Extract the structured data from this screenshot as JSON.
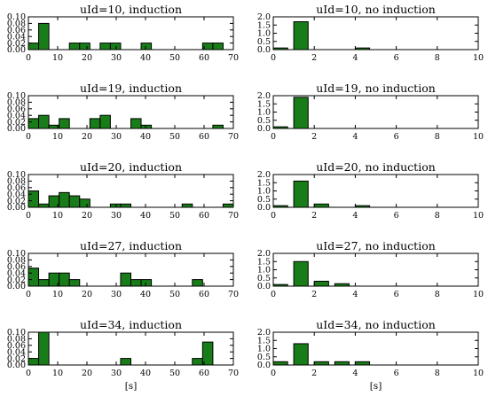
{
  "figure": {
    "background": "#ffffff",
    "bar_color": "#187d18",
    "edge_color": "#000000"
  },
  "chart_data": [
    {
      "type": "bar",
      "title": "uId=10, induction",
      "xlabel": "",
      "ylabel": "",
      "xlim": [
        0,
        70
      ],
      "ylim": [
        0,
        0.1
      ],
      "bin_width": 3.5,
      "xticks": [
        "0",
        "10",
        "20",
        "30",
        "40",
        "50",
        "60",
        "70"
      ],
      "yticks": [
        "0.00",
        "0.02",
        "0.04",
        "0.06",
        "0.08",
        "0.10"
      ],
      "bars": [
        {
          "x": 0,
          "value": 0.02
        },
        {
          "x": 3.5,
          "value": 0.08
        },
        {
          "x": 14,
          "value": 0.02
        },
        {
          "x": 17.5,
          "value": 0.02
        },
        {
          "x": 24.5,
          "value": 0.02
        },
        {
          "x": 28,
          "value": 0.02
        },
        {
          "x": 38.5,
          "value": 0.02
        },
        {
          "x": 59.5,
          "value": 0.02
        },
        {
          "x": 63,
          "value": 0.02
        }
      ]
    },
    {
      "type": "bar",
      "title": "uId=10, no induction",
      "xlabel": "",
      "ylabel": "",
      "xlim": [
        0,
        10
      ],
      "ylim": [
        0,
        2.0
      ],
      "bin_width": 0.7,
      "xticks": [
        "0",
        "2",
        "4",
        "6",
        "8",
        "10"
      ],
      "yticks": [
        "0.0",
        "0.5",
        "1.0",
        "1.5",
        "2.0"
      ],
      "bars": [
        {
          "x": 0,
          "value": 0.1
        },
        {
          "x": 1,
          "value": 1.7
        },
        {
          "x": 4,
          "value": 0.1
        }
      ]
    },
    {
      "type": "bar",
      "title": "uId=19, induction",
      "xlabel": "",
      "ylabel": "",
      "xlim": [
        0,
        70
      ],
      "ylim": [
        0,
        0.1
      ],
      "bin_width": 3.5,
      "xticks": [
        "0",
        "10",
        "20",
        "30",
        "40",
        "50",
        "60",
        "70"
      ],
      "yticks": [
        "0.00",
        "0.02",
        "0.04",
        "0.06",
        "0.08",
        "0.10"
      ],
      "bars": [
        {
          "x": 0,
          "value": 0.03
        },
        {
          "x": 3.5,
          "value": 0.04
        },
        {
          "x": 7,
          "value": 0.01
        },
        {
          "x": 10.5,
          "value": 0.03
        },
        {
          "x": 21,
          "value": 0.03
        },
        {
          "x": 24.5,
          "value": 0.04
        },
        {
          "x": 35,
          "value": 0.03
        },
        {
          "x": 38.5,
          "value": 0.01
        },
        {
          "x": 63,
          "value": 0.01
        }
      ]
    },
    {
      "type": "bar",
      "title": "uId=19, no induction",
      "xlabel": "",
      "ylabel": "",
      "xlim": [
        0,
        10
      ],
      "ylim": [
        0,
        2.0
      ],
      "bin_width": 0.7,
      "xticks": [
        "0",
        "2",
        "4",
        "6",
        "8",
        "10"
      ],
      "yticks": [
        "0.0",
        "0.5",
        "1.0",
        "1.5",
        "2.0"
      ],
      "bars": [
        {
          "x": 0,
          "value": 0.1
        },
        {
          "x": 1,
          "value": 1.9
        }
      ]
    },
    {
      "type": "bar",
      "title": "uId=20, induction",
      "xlabel": "",
      "ylabel": "",
      "xlim": [
        0,
        70
      ],
      "ylim": [
        0,
        0.1
      ],
      "bin_width": 3.5,
      "xticks": [
        "0",
        "10",
        "20",
        "30",
        "40",
        "50",
        "60",
        "70"
      ],
      "yticks": [
        "0.00",
        "0.02",
        "0.04",
        "0.06",
        "0.08",
        "0.10"
      ],
      "bars": [
        {
          "x": 0,
          "value": 0.05
        },
        {
          "x": 3.5,
          "value": 0.01
        },
        {
          "x": 7,
          "value": 0.035
        },
        {
          "x": 10.5,
          "value": 0.045
        },
        {
          "x": 14,
          "value": 0.035
        },
        {
          "x": 17.5,
          "value": 0.025
        },
        {
          "x": 28,
          "value": 0.01
        },
        {
          "x": 31.5,
          "value": 0.01
        },
        {
          "x": 52.5,
          "value": 0.01
        },
        {
          "x": 66.5,
          "value": 0.01
        }
      ]
    },
    {
      "type": "bar",
      "title": "uId=20, no induction",
      "xlabel": "",
      "ylabel": "",
      "xlim": [
        0,
        10
      ],
      "ylim": [
        0,
        2.0
      ],
      "bin_width": 0.7,
      "xticks": [
        "0",
        "2",
        "4",
        "6",
        "8",
        "10"
      ],
      "yticks": [
        "0.0",
        "0.5",
        "1.0",
        "1.5",
        "2.0"
      ],
      "bars": [
        {
          "x": 0,
          "value": 0.1
        },
        {
          "x": 1,
          "value": 1.6
        },
        {
          "x": 2,
          "value": 0.2
        },
        {
          "x": 4,
          "value": 0.1
        }
      ]
    },
    {
      "type": "bar",
      "title": "uId=27, induction",
      "xlabel": "",
      "ylabel": "",
      "xlim": [
        0,
        70
      ],
      "ylim": [
        0,
        0.1
      ],
      "bin_width": 3.5,
      "xticks": [
        "0",
        "10",
        "20",
        "30",
        "40",
        "50",
        "60",
        "70"
      ],
      "yticks": [
        "0.00",
        "0.02",
        "0.04",
        "0.06",
        "0.08",
        "0.10"
      ],
      "bars": [
        {
          "x": 0,
          "value": 0.055
        },
        {
          "x": 3.5,
          "value": 0.02
        },
        {
          "x": 7,
          "value": 0.04
        },
        {
          "x": 10.5,
          "value": 0.04
        },
        {
          "x": 14,
          "value": 0.02
        },
        {
          "x": 31.5,
          "value": 0.04
        },
        {
          "x": 35,
          "value": 0.02
        },
        {
          "x": 38.5,
          "value": 0.02
        },
        {
          "x": 56,
          "value": 0.02
        }
      ]
    },
    {
      "type": "bar",
      "title": "uId=27, no induction",
      "xlabel": "",
      "ylabel": "",
      "xlim": [
        0,
        10
      ],
      "ylim": [
        0,
        2.0
      ],
      "bin_width": 0.7,
      "xticks": [
        "0",
        "2",
        "4",
        "6",
        "8",
        "10"
      ],
      "yticks": [
        "0.0",
        "0.5",
        "1.0",
        "1.5",
        "2.0"
      ],
      "bars": [
        {
          "x": 0,
          "value": 0.1
        },
        {
          "x": 1,
          "value": 1.5
        },
        {
          "x": 2,
          "value": 0.3
        },
        {
          "x": 3,
          "value": 0.15
        }
      ]
    },
    {
      "type": "bar",
      "title": "uId=34, induction",
      "xlabel": "[s]",
      "ylabel": "",
      "xlim": [
        0,
        70
      ],
      "ylim": [
        0,
        0.1
      ],
      "bin_width": 3.5,
      "xticks": [
        "0",
        "10",
        "20",
        "30",
        "40",
        "50",
        "60",
        "70"
      ],
      "yticks": [
        "0.00",
        "0.02",
        "0.04",
        "0.06",
        "0.08",
        "0.10"
      ],
      "bars": [
        {
          "x": 0,
          "value": 0.02
        },
        {
          "x": 3.5,
          "value": 0.1
        },
        {
          "x": 31.5,
          "value": 0.02
        },
        {
          "x": 56,
          "value": 0.02
        },
        {
          "x": 59.5,
          "value": 0.07
        }
      ]
    },
    {
      "type": "bar",
      "title": "uId=34, no induction",
      "xlabel": "[s]",
      "ylabel": "",
      "xlim": [
        0,
        10
      ],
      "ylim": [
        0,
        2.0
      ],
      "bin_width": 0.7,
      "xticks": [
        "0",
        "2",
        "4",
        "6",
        "8",
        "10"
      ],
      "yticks": [
        "0.0",
        "0.5",
        "1.0",
        "1.5",
        "2.0"
      ],
      "bars": [
        {
          "x": 0,
          "value": 0.2
        },
        {
          "x": 1,
          "value": 1.3
        },
        {
          "x": 2,
          "value": 0.2
        },
        {
          "x": 3,
          "value": 0.2
        },
        {
          "x": 4,
          "value": 0.2
        }
      ]
    }
  ]
}
